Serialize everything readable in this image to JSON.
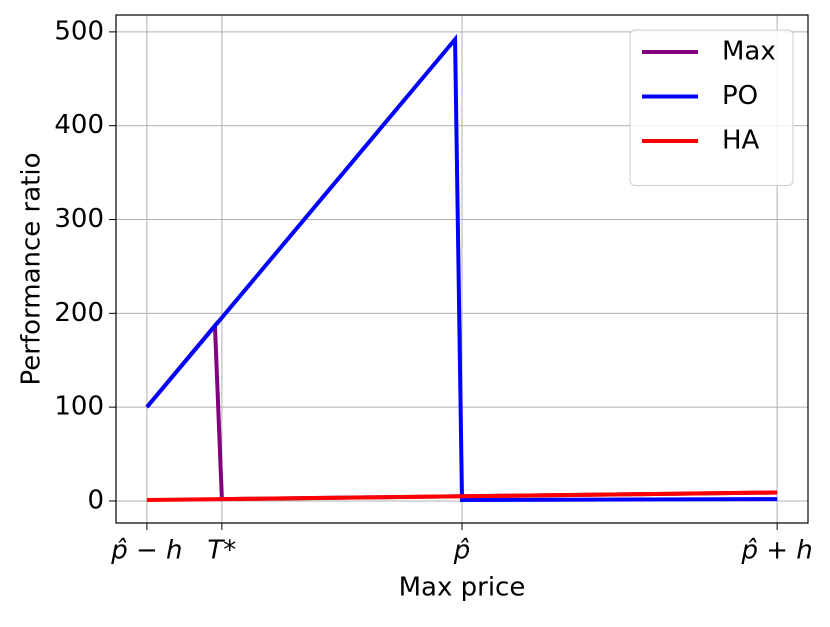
{
  "chart_data": {
    "type": "line",
    "xlabel": "Max price",
    "ylabel": "Performance ratio",
    "xlim": [
      -1.098,
      1.098
    ],
    "xticks": [
      {
        "value": -1,
        "label": "p̂ − h"
      },
      {
        "value": -0.762,
        "label": "T*"
      },
      {
        "value": 0,
        "label": "p̂"
      },
      {
        "value": 1,
        "label": "p̂ + h"
      }
    ],
    "ylim": [
      -23.5,
      518
    ],
    "yticks": [
      0,
      100,
      200,
      300,
      400,
      500
    ],
    "grid": true,
    "legend": "upper right",
    "series": [
      {
        "name": "Max",
        "color": "#800080",
        "x": [
          -1,
          -0.784,
          -0.762,
          1
        ],
        "values": [
          100,
          187,
          2,
          9
        ]
      },
      {
        "name": "PO",
        "color": "#0000ff",
        "x": [
          -1,
          -0.022,
          0,
          1
        ],
        "values": [
          100,
          492,
          1,
          2
        ]
      },
      {
        "name": "HA",
        "color": "#ff0000",
        "x": [
          -1,
          1
        ],
        "values": [
          1,
          9
        ]
      }
    ]
  }
}
